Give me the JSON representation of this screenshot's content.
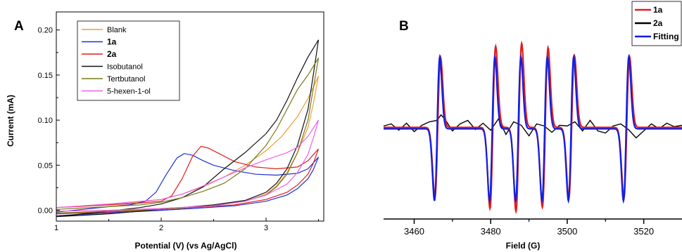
{
  "chart_data": [
    {
      "type": "line",
      "panel_label": "A",
      "xlabel": "Potential (V) (vs Ag/AgCl)",
      "ylabel": "Current (mA)",
      "xlim": [
        1.0,
        3.55
      ],
      "ylim": [
        -0.012,
        0.22
      ],
      "x_ticks": [
        1,
        2,
        3
      ],
      "y_ticks": [
        0.0,
        0.05,
        0.1,
        0.15,
        0.2
      ],
      "y_tick_labels": [
        "0.00",
        "0.05",
        "0.10",
        "0.15",
        "0.20"
      ],
      "legend_position": "top-left",
      "series": [
        {
          "name": "Blank",
          "color": "#f39c3c",
          "forward": [
            [
              1.0,
              0.003
            ],
            [
              1.5,
              0.006
            ],
            [
              1.8,
              0.009
            ],
            [
              2.0,
              0.012
            ],
            [
              2.2,
              0.018
            ],
            [
              2.4,
              0.026
            ],
            [
              2.6,
              0.037
            ],
            [
              2.8,
              0.05
            ],
            [
              3.0,
              0.066
            ],
            [
              3.15,
              0.082
            ],
            [
              3.3,
              0.104
            ],
            [
              3.4,
              0.124
            ],
            [
              3.5,
              0.149
            ]
          ],
          "reverse": [
            [
              3.5,
              0.149
            ],
            [
              3.45,
              0.118
            ],
            [
              3.4,
              0.092
            ],
            [
              3.3,
              0.064
            ],
            [
              3.2,
              0.042
            ],
            [
              3.1,
              0.027
            ],
            [
              3.0,
              0.018
            ],
            [
              2.8,
              0.01
            ],
            [
              2.5,
              0.005
            ],
            [
              2.0,
              0.002
            ],
            [
              1.5,
              0.0
            ],
            [
              1.0,
              -0.001
            ]
          ]
        },
        {
          "name": "1a",
          "color": "#1e2fd6",
          "forward": [
            [
              1.0,
              -0.002
            ],
            [
              1.5,
              0.004
            ],
            [
              1.7,
              0.006
            ],
            [
              1.85,
              0.01
            ],
            [
              1.95,
              0.02
            ],
            [
              2.05,
              0.04
            ],
            [
              2.15,
              0.058
            ],
            [
              2.22,
              0.063
            ],
            [
              2.3,
              0.061
            ],
            [
              2.4,
              0.055
            ],
            [
              2.5,
              0.05
            ],
            [
              2.7,
              0.044
            ],
            [
              2.9,
              0.04
            ],
            [
              3.1,
              0.039
            ],
            [
              3.3,
              0.041
            ],
            [
              3.4,
              0.046
            ],
            [
              3.5,
              0.059
            ]
          ],
          "reverse": [
            [
              3.5,
              0.059
            ],
            [
              3.45,
              0.045
            ],
            [
              3.4,
              0.035
            ],
            [
              3.3,
              0.024
            ],
            [
              3.2,
              0.017
            ],
            [
              3.0,
              0.01
            ],
            [
              2.7,
              0.005
            ],
            [
              2.3,
              0.002
            ],
            [
              2.0,
              0.0
            ],
            [
              1.5,
              -0.003
            ],
            [
              1.0,
              -0.006
            ]
          ]
        },
        {
          "name": "2a",
          "color": "#e21d1d",
          "forward": [
            [
              1.0,
              0.003
            ],
            [
              1.5,
              0.006
            ],
            [
              1.8,
              0.008
            ],
            [
              2.0,
              0.01
            ],
            [
              2.1,
              0.016
            ],
            [
              2.2,
              0.035
            ],
            [
              2.3,
              0.06
            ],
            [
              2.38,
              0.071
            ],
            [
              2.45,
              0.069
            ],
            [
              2.55,
              0.063
            ],
            [
              2.7,
              0.054
            ],
            [
              2.9,
              0.048
            ],
            [
              3.1,
              0.046
            ],
            [
              3.3,
              0.048
            ],
            [
              3.4,
              0.055
            ],
            [
              3.5,
              0.068
            ]
          ],
          "reverse": [
            [
              3.5,
              0.068
            ],
            [
              3.45,
              0.052
            ],
            [
              3.4,
              0.04
            ],
            [
              3.3,
              0.028
            ],
            [
              3.2,
              0.02
            ],
            [
              3.0,
              0.012
            ],
            [
              2.7,
              0.006
            ],
            [
              2.3,
              0.003
            ],
            [
              2.0,
              0.001
            ],
            [
              1.5,
              -0.002
            ],
            [
              1.0,
              -0.004
            ]
          ]
        },
        {
          "name": "Isobutanol",
          "color": "#111111",
          "forward": [
            [
              1.0,
              -0.007
            ],
            [
              1.5,
              -0.001
            ],
            [
              1.8,
              0.003
            ],
            [
              2.0,
              0.007
            ],
            [
              2.2,
              0.014
            ],
            [
              2.4,
              0.026
            ],
            [
              2.6,
              0.046
            ],
            [
              2.8,
              0.064
            ],
            [
              3.0,
              0.085
            ],
            [
              3.1,
              0.1
            ],
            [
              3.2,
              0.122
            ],
            [
              3.3,
              0.147
            ],
            [
              3.4,
              0.17
            ],
            [
              3.5,
              0.189
            ]
          ],
          "reverse": [
            [
              3.5,
              0.189
            ],
            [
              3.45,
              0.15
            ],
            [
              3.4,
              0.112
            ],
            [
              3.3,
              0.072
            ],
            [
              3.2,
              0.046
            ],
            [
              3.1,
              0.03
            ],
            [
              3.0,
              0.02
            ],
            [
              2.8,
              0.011
            ],
            [
              2.5,
              0.006
            ],
            [
              2.0,
              0.001
            ],
            [
              1.5,
              -0.004
            ],
            [
              1.0,
              -0.007
            ]
          ]
        },
        {
          "name": "Tertbutanol",
          "color": "#7a7a1a",
          "forward": [
            [
              1.0,
              0.001
            ],
            [
              1.5,
              0.004
            ],
            [
              1.8,
              0.006
            ],
            [
              2.0,
              0.009
            ],
            [
              2.2,
              0.014
            ],
            [
              2.4,
              0.021
            ],
            [
              2.6,
              0.03
            ],
            [
              2.8,
              0.046
            ],
            [
              3.0,
              0.072
            ],
            [
              3.1,
              0.09
            ],
            [
              3.2,
              0.112
            ],
            [
              3.3,
              0.134
            ],
            [
              3.4,
              0.15
            ],
            [
              3.5,
              0.169
            ]
          ],
          "reverse": [
            [
              3.5,
              0.169
            ],
            [
              3.45,
              0.135
            ],
            [
              3.4,
              0.1
            ],
            [
              3.3,
              0.064
            ],
            [
              3.2,
              0.04
            ],
            [
              3.1,
              0.026
            ],
            [
              3.0,
              0.017
            ],
            [
              2.8,
              0.01
            ],
            [
              2.5,
              0.005
            ],
            [
              2.0,
              0.001
            ],
            [
              1.5,
              -0.001
            ],
            [
              1.0,
              -0.003
            ]
          ]
        },
        {
          "name": "5-hexen-1-ol",
          "color": "#ee5fee",
          "forward": [
            [
              1.0,
              0.003
            ],
            [
              1.5,
              0.007
            ],
            [
              2.0,
              0.012
            ],
            [
              2.2,
              0.018
            ],
            [
              2.4,
              0.027
            ],
            [
              2.6,
              0.037
            ],
            [
              2.8,
              0.047
            ],
            [
              3.0,
              0.056
            ],
            [
              3.2,
              0.064
            ],
            [
              3.3,
              0.07
            ],
            [
              3.4,
              0.082
            ],
            [
              3.5,
              0.1
            ]
          ],
          "reverse": [
            [
              3.5,
              0.1
            ],
            [
              3.45,
              0.08
            ],
            [
              3.4,
              0.062
            ],
            [
              3.3,
              0.042
            ],
            [
              3.2,
              0.029
            ],
            [
              3.0,
              0.017
            ],
            [
              2.8,
              0.01
            ],
            [
              2.5,
              0.005
            ],
            [
              2.0,
              0.002
            ],
            [
              1.5,
              0.0
            ],
            [
              1.0,
              -0.001
            ]
          ]
        }
      ]
    },
    {
      "type": "line",
      "panel_label": "B",
      "xlabel": "Field (G)",
      "ylabel": "",
      "xlim": [
        3452,
        3530
      ],
      "ylim": [
        -1.25,
        1.25
      ],
      "x_ticks": [
        3460,
        3480,
        3500,
        3520
      ],
      "x_minor_ticks": [
        3470,
        3490,
        3510
      ],
      "legend_position": "top-right",
      "line_centers": [
        3466.0,
        3480.4,
        3487.2,
        3494.1,
        3501.0,
        3515.4
      ],
      "series": [
        {
          "name": "1a",
          "color": "#e21d1d",
          "peak_amplitudes": [
            1.0,
            1.16,
            1.2,
            1.14,
            1.02,
            1.01
          ],
          "line_width_G": 0.75,
          "baseline": 0.0,
          "x_offset_G": 0.15
        },
        {
          "name": "2a",
          "color": "#000000",
          "x": [
            3452,
            3454,
            3456,
            3458,
            3460,
            3462,
            3464,
            3466,
            3467,
            3468,
            3470,
            3472,
            3474,
            3476,
            3478,
            3480,
            3482,
            3484,
            3486,
            3488,
            3490,
            3492,
            3494,
            3496,
            3498,
            3500,
            3502,
            3504,
            3506,
            3508,
            3510,
            3512,
            3514,
            3516,
            3518,
            3520,
            3522,
            3524,
            3526,
            3528,
            3530
          ],
          "y": [
            0.02,
            0.05,
            -0.04,
            0.06,
            -0.06,
            0.03,
            0.08,
            0.1,
            0.18,
            0.12,
            -0.05,
            0.05,
            0.1,
            -0.03,
            0.06,
            -0.04,
            0.12,
            -0.1,
            0.08,
            0.03,
            -0.12,
            0.05,
            0.02,
            -0.07,
            0.03,
            0.02,
            0.08,
            -0.05,
            0.1,
            -0.05,
            -0.08,
            0.02,
            0.05,
            -0.03,
            -0.15,
            -0.05,
            0.05,
            -0.02,
            0.06,
            0.01,
            0.03
          ]
        },
        {
          "name": "Fitting",
          "color": "#1020e0",
          "peak_amplitudes": [
            1.03,
            1.03,
            1.03,
            1.03,
            1.03,
            1.03
          ],
          "line_width_G": 0.7,
          "baseline": -0.02,
          "x_offset_G": 0.0
        }
      ]
    }
  ]
}
